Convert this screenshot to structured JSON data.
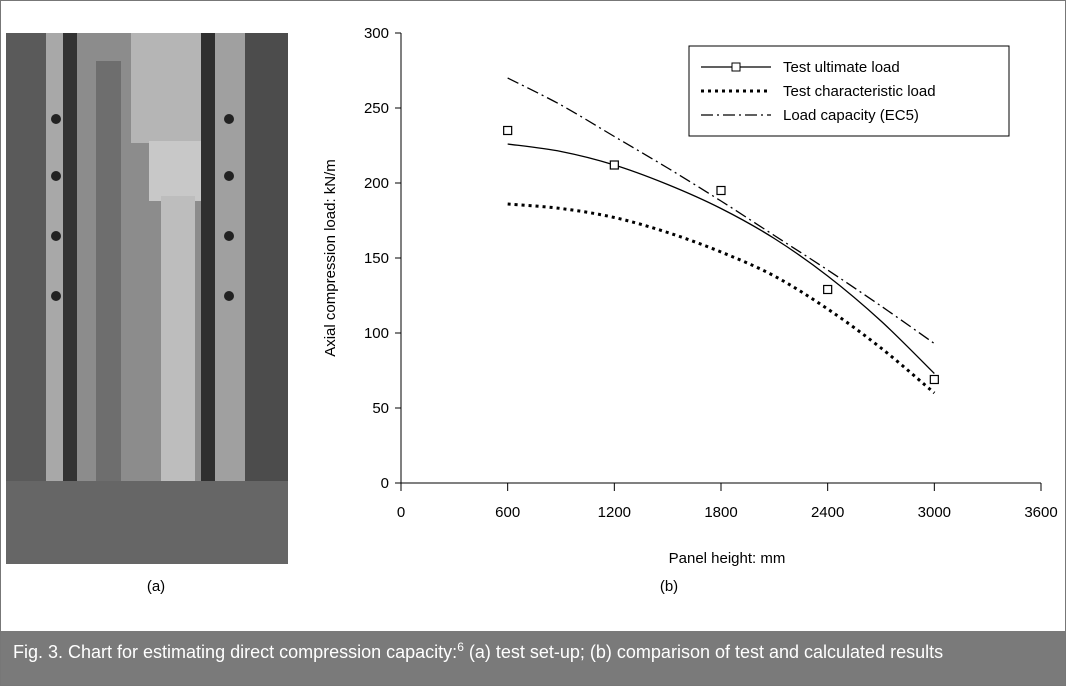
{
  "figure": {
    "label_a": "(a)",
    "label_b": "(b)"
  },
  "caption": {
    "lead": "Fig. 3.  Chart for estimating direct compression capacity:",
    "sup": "6",
    "rest": " (a) test set-up; (b) comparison of test and calculated results"
  },
  "chart_data": {
    "type": "line",
    "x_label": "Panel height: mm",
    "y_label": "Axial compression load: kN/m",
    "x": [
      600,
      900,
      1200,
      1500,
      1800,
      2100,
      2400,
      2700,
      3000
    ],
    "series": [
      {
        "name": "Test ultimate load",
        "color": "#000000",
        "style": "solid",
        "values": [
          226,
          221,
          212,
          199,
          183,
          163,
          138,
          108,
          73
        ],
        "markers": {
          "x": [
            600,
            1200,
            1800,
            2400,
            3000
          ],
          "values": [
            235,
            212,
            195,
            129,
            69
          ]
        }
      },
      {
        "name": "Test characteristic load",
        "color": "#000000",
        "style": "dotted",
        "values": [
          186,
          183,
          177,
          167,
          154,
          138,
          116,
          90,
          60
        ]
      },
      {
        "name": "Load capacity (EC5)",
        "color": "#000000",
        "style": "dashdot",
        "values": [
          270,
          252,
          231,
          210,
          188,
          165,
          142,
          118,
          93
        ]
      }
    ],
    "xlim": [
      0,
      3600
    ],
    "xticks": [
      0,
      600,
      1200,
      1800,
      2400,
      3000,
      3600
    ],
    "ylim": [
      0,
      300
    ],
    "yticks": [
      0,
      50,
      100,
      150,
      200,
      250,
      300
    ],
    "legend": "upper right"
  }
}
